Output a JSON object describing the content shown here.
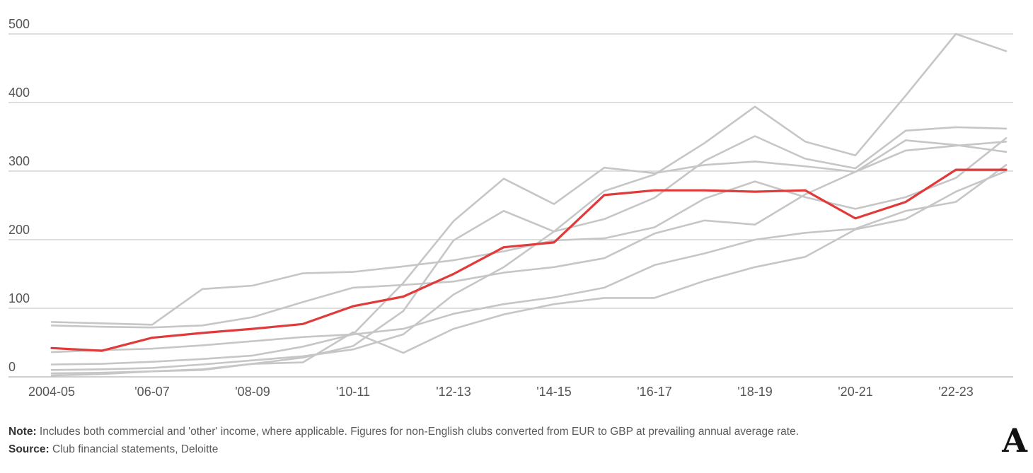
{
  "chart_data": {
    "type": "line",
    "title": "",
    "xlabel": "",
    "ylabel": "",
    "ylim": [
      0,
      500
    ],
    "y_ticks": [
      0,
      100,
      200,
      300,
      400,
      500
    ],
    "grid": "horizontal",
    "legend": "none",
    "seasons": [
      "2004-05",
      "2005-06",
      "2006-07",
      "2007-08",
      "2008-09",
      "2009-10",
      "2010-11",
      "2011-12",
      "2012-13",
      "2013-14",
      "2014-15",
      "2015-16",
      "2016-17",
      "2017-18",
      "2018-19",
      "2019-20",
      "2020-21",
      "2021-22",
      "2022-23",
      "2023-24"
    ],
    "x_axis_tick_labels": [
      "2004-05",
      "'06-07",
      "'08-09",
      "'10-11",
      "'12-13",
      "'14-15",
      "'16-17",
      "'18-19",
      "'20-21",
      "'22-23"
    ],
    "x_axis_tick_season_indices": [
      0,
      2,
      4,
      6,
      8,
      10,
      12,
      14,
      16,
      18
    ],
    "colors": {
      "highlight": "#e03a3a",
      "gray": "#c6c6c6",
      "gridline": "#c9c9c9",
      "axis": "#b0b0b0",
      "tick_text": "#565656"
    },
    "series": [
      {
        "name": "gray-line-1",
        "color": "#c6c6c6",
        "highlight": false,
        "values": [
          10,
          11,
          13,
          18,
          24,
          30,
          40,
          62,
          120,
          160,
          212,
          271,
          295,
          341,
          394,
          343,
          323,
          410,
          500,
          475
        ]
      },
      {
        "name": "gray-line-2",
        "color": "#c6c6c6",
        "highlight": false,
        "values": [
          2,
          4,
          8,
          11,
          19,
          28,
          45,
          96,
          199,
          242,
          212,
          230,
          261,
          315,
          351,
          318,
          304,
          359,
          364,
          362
        ]
      },
      {
        "name": "gray-line-3",
        "color": "#c6c6c6",
        "highlight": false,
        "values": [
          18,
          19,
          22,
          26,
          31,
          44,
          62,
          137,
          227,
          289,
          252,
          305,
          297,
          309,
          314,
          307,
          299,
          345,
          338,
          328
        ]
      },
      {
        "name": "gray-line-4",
        "color": "#c6c6c6",
        "highlight": false,
        "values": [
          80,
          78,
          76,
          128,
          133,
          151,
          153,
          161,
          170,
          183,
          199,
          202,
          218,
          260,
          285,
          262,
          245,
          262,
          290,
          348
        ]
      },
      {
        "name": "gray-line-5",
        "color": "#c6c6c6",
        "highlight": false,
        "values": [
          36,
          39,
          41,
          46,
          52,
          58,
          62,
          70,
          92,
          106,
          116,
          130,
          163,
          180,
          200,
          210,
          216,
          242,
          255,
          309
        ]
      },
      {
        "name": "gray-line-6",
        "color": "#c6c6c6",
        "highlight": false,
        "values": [
          75,
          73,
          72,
          75,
          87,
          109,
          130,
          134,
          139,
          152,
          160,
          173,
          209,
          228,
          222,
          266,
          299,
          330,
          337,
          343
        ]
      },
      {
        "name": "gray-line-7",
        "color": "#c6c6c6",
        "highlight": false,
        "values": [
          5,
          6,
          8,
          10,
          19,
          21,
          65,
          35,
          70,
          91,
          106,
          115,
          115,
          140,
          160,
          175,
          215,
          230,
          270,
          300
        ]
      },
      {
        "name": "highlighted-red-line",
        "color": "#e03a3a",
        "highlight": true,
        "values": [
          42,
          38,
          57,
          64,
          70,
          77,
          103,
          117,
          150,
          189,
          196,
          265,
          272,
          272,
          270,
          272,
          231,
          255,
          302,
          302
        ]
      }
    ]
  },
  "footer": {
    "note_label": "Note:",
    "note_text": " Includes both commercial and 'other' income, where applicable. Figures for non-English clubs converted from EUR to GBP at prevailing annual average rate.",
    "source_label": "Source:",
    "source_text": " Club financial statements, Deloitte"
  },
  "branding": {
    "logo_letter": "A"
  }
}
